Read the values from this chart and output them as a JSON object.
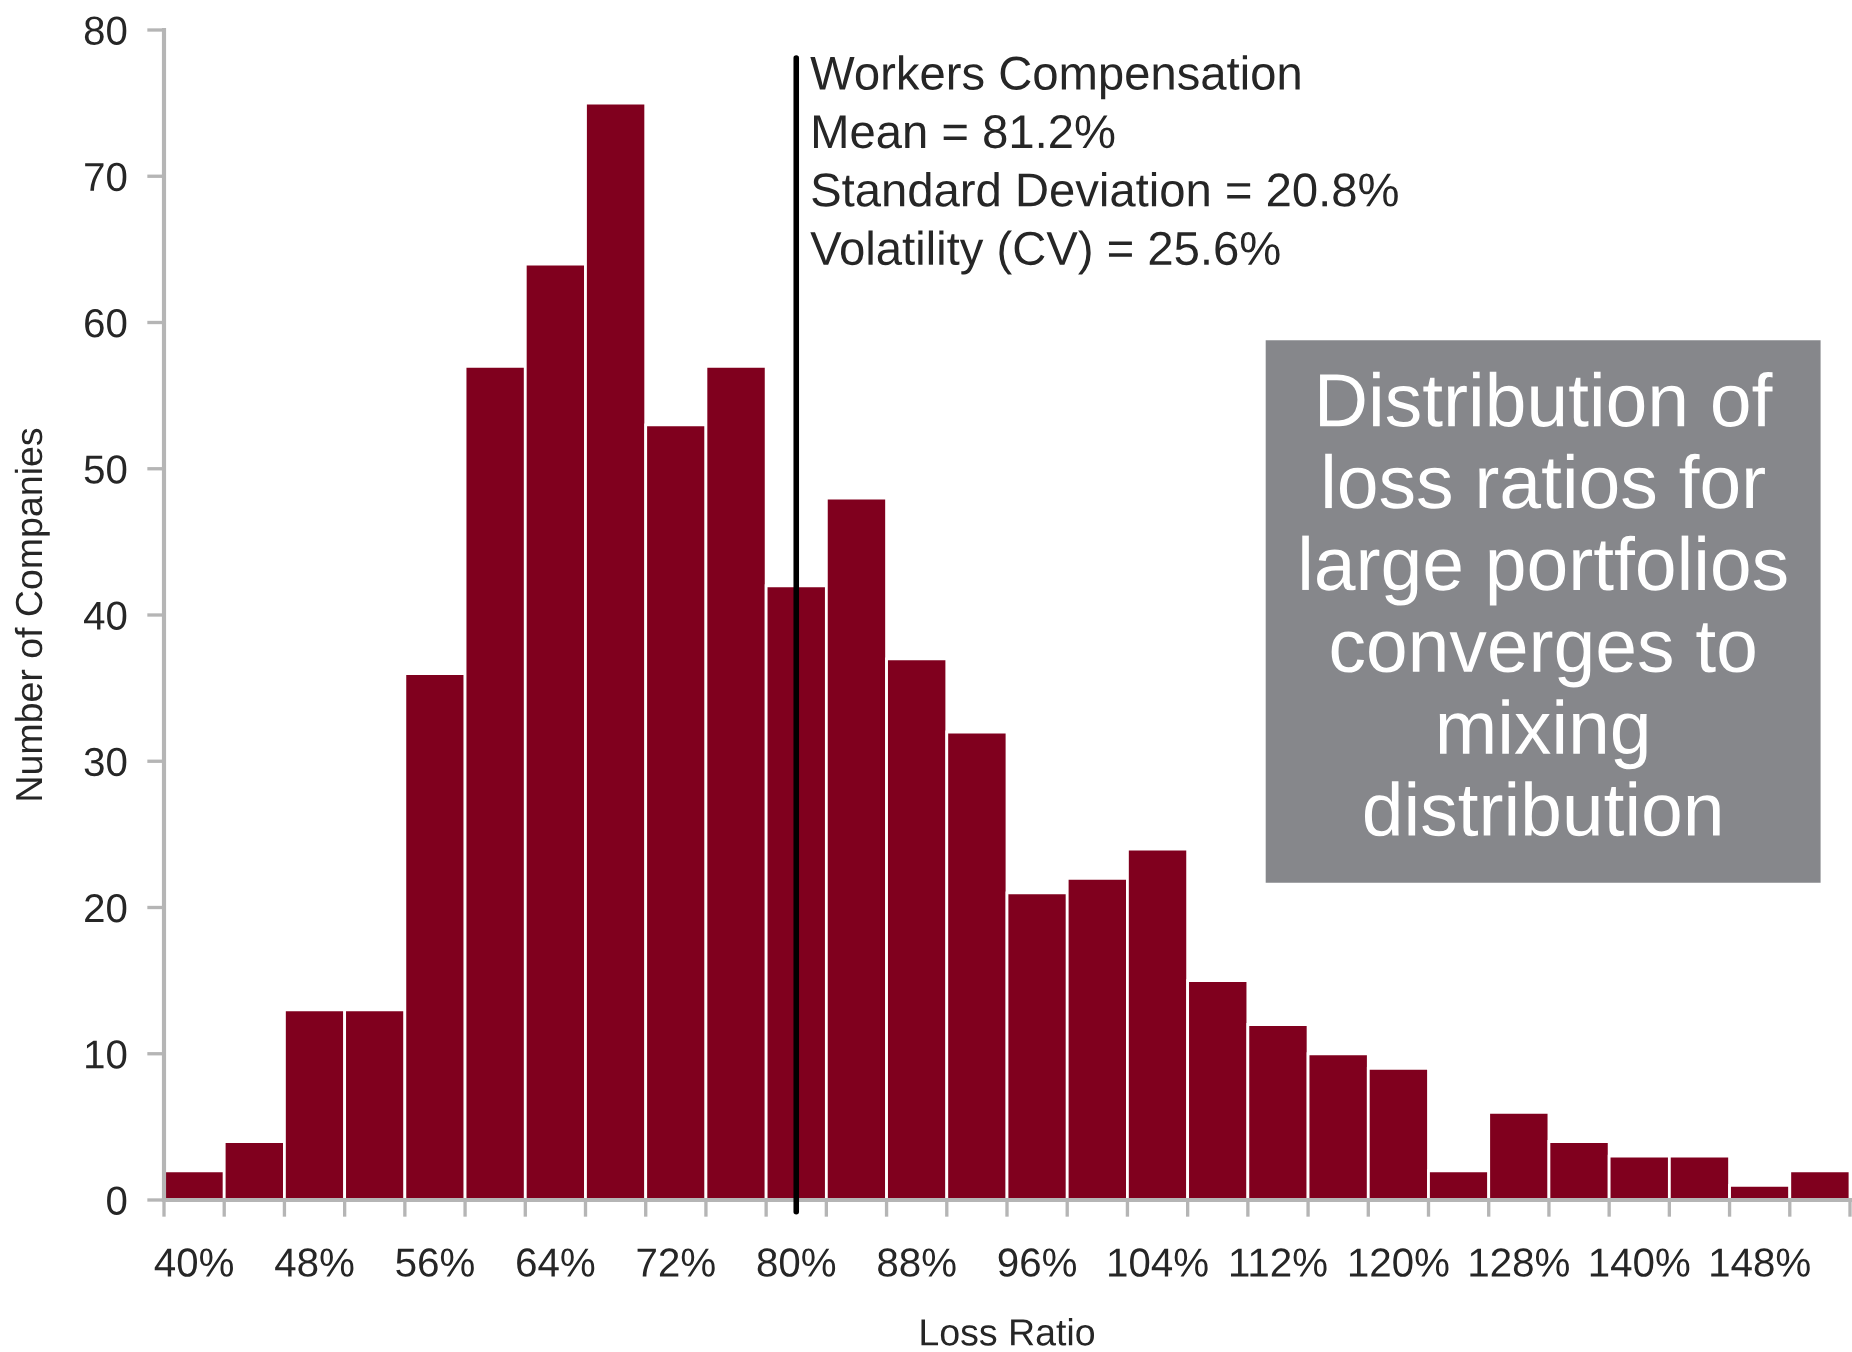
{
  "chart_data": {
    "type": "bar",
    "xlabel": "Loss Ratio",
    "ylabel": "Number of Companies",
    "categories": [
      "40%",
      null,
      "48%",
      null,
      "56%",
      null,
      "64%",
      null,
      "72%",
      null,
      "80%",
      null,
      "88%",
      null,
      "96%",
      null,
      "104%",
      null,
      "112%",
      null,
      "120%",
      null,
      "128%",
      null,
      "140%",
      null,
      "148%",
      null
    ],
    "values": [
      2,
      4,
      13,
      13,
      36,
      57,
      64,
      75,
      53,
      57,
      42,
      48,
      37,
      32,
      21,
      22,
      24,
      15,
      12,
      10,
      9,
      2,
      6,
      4,
      3,
      3,
      1,
      2
    ],
    "color": "#80001e",
    "ylim": [
      0,
      80
    ],
    "yticks": [
      0,
      10,
      20,
      30,
      40,
      50,
      60,
      70,
      80
    ],
    "ref_lines": [
      {
        "axis": "x",
        "value": "80%",
        "label": "Workers Compensation\nMean = 81.2%\nStandard Deviation = 20.8%\nVolatility (CV) = 25.6%",
        "color": "#000000"
      }
    ],
    "annotations": [
      "Distribution of\nloss ratios for\nlarge portfolios\nconverges to\nmixing\ndistribution"
    ],
    "grid": false
  }
}
